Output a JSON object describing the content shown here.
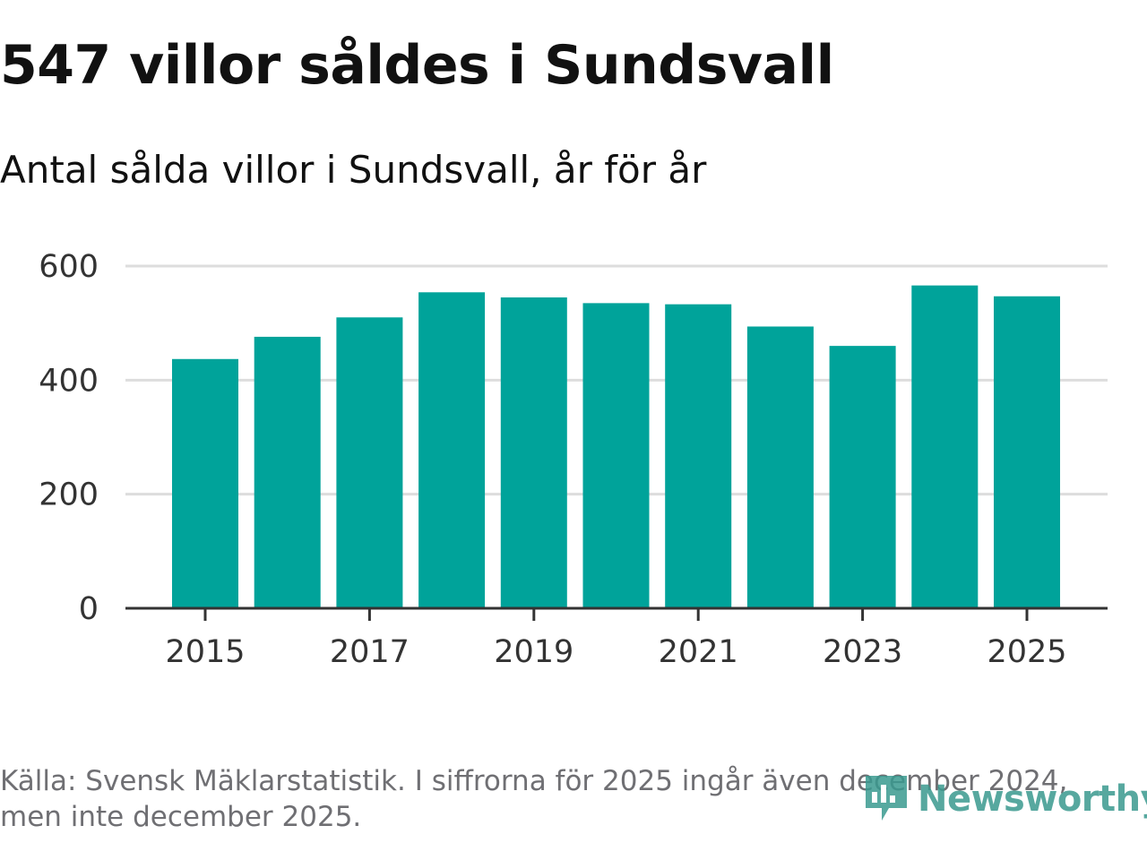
{
  "title": "547 villor såldes i Sundsvall",
  "subtitle": "Antal sålda villor i Sundsvall, år för år",
  "footer": {
    "source_line1": "Källa: Svensk Mäklarstatistik. I siffrorna för 2025 ingår även december 2024,",
    "source_line2": "men inte december 2025."
  },
  "logo": {
    "text": "Newsworthy",
    "icon": "newsworthy-chart-icon",
    "color": "#3a9a8f"
  },
  "colors": {
    "bar": "#00a39a",
    "grid": "#dddddd",
    "axis": "#333333"
  },
  "chart_data": {
    "type": "bar",
    "title": "Antal sålda villor i Sundsvall, år för år",
    "categories": [
      "2015",
      "2016",
      "2017",
      "2018",
      "2019",
      "2020",
      "2021",
      "2022",
      "2023",
      "2024",
      "2025"
    ],
    "values": [
      437,
      476,
      510,
      554,
      545,
      535,
      533,
      494,
      460,
      566,
      547
    ],
    "xticks": [
      "2015",
      "2017",
      "2019",
      "2021",
      "2023",
      "2025"
    ],
    "yticks": [
      0,
      200,
      400,
      600
    ],
    "ylim": [
      0,
      600
    ],
    "xlabel": "",
    "ylabel": "",
    "grid": true
  }
}
